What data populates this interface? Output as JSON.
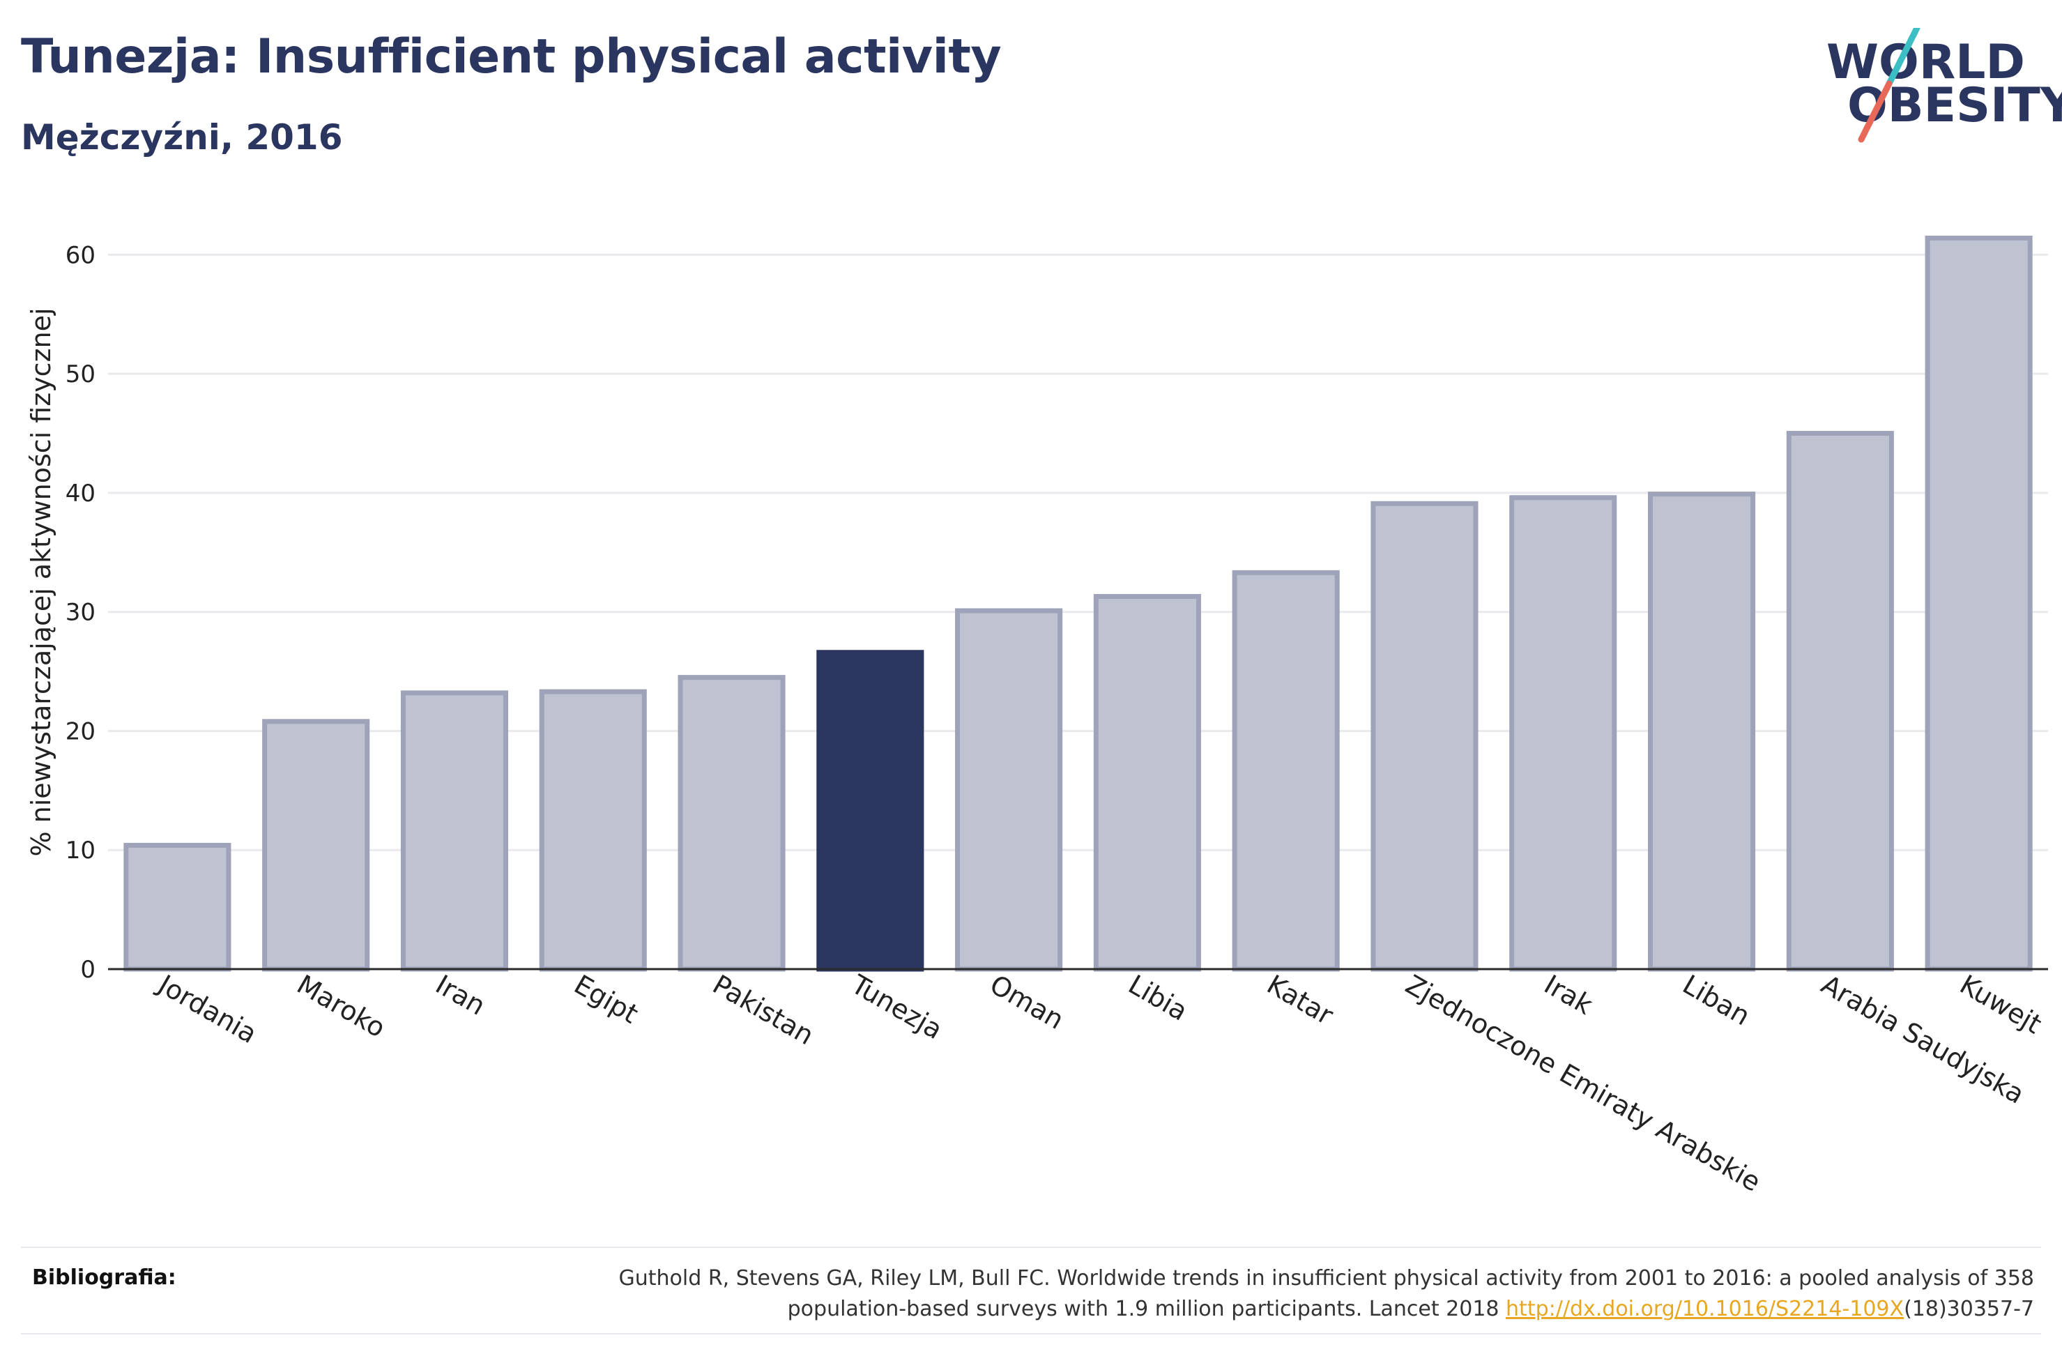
{
  "header": {
    "title": "Tunezja: Insufficient physical activity",
    "subtitle": "Mężczyźni, 2016"
  },
  "logo": {
    "line1": "WORLD",
    "line2": "OBESITY",
    "slash_top_color": "#3bbfc4",
    "slash_bottom_color": "#e8685a"
  },
  "chart_data": {
    "type": "bar",
    "categories": [
      "Jordania",
      "Maroko",
      "Iran",
      "Egipt",
      "Pakistan",
      "Tunezja",
      "Oman",
      "Libia",
      "Katar",
      "Zjednoczone Emiraty Arabskie",
      "Irak",
      "Liban",
      "Arabia Saudyjska",
      "Kuwejt"
    ],
    "values": [
      10.4,
      20.8,
      23.2,
      23.3,
      24.5,
      26.6,
      30.1,
      31.3,
      33.3,
      39.1,
      39.6,
      39.9,
      45.0,
      61.4
    ],
    "highlight": "Tunezja",
    "ylabel": "% niewystarczającej aktywności fizycznej",
    "xlabel": "",
    "ylim": [
      0,
      65
    ],
    "yticks": [
      0,
      10,
      20,
      30,
      40,
      50,
      60
    ],
    "grid": true,
    "colors": {
      "bar": "#bfc2d0",
      "bar_border": "#9ea3b9",
      "highlight": "#2b3660",
      "grid": "#e9e9ee"
    }
  },
  "bibliography": {
    "label": "Bibliografia:",
    "text_line1": "Guthold R, Stevens GA, Riley LM, Bull FC. Worldwide trends in insufficient physical activity from 2001 to 2016: a pooled analysis of 358",
    "text_line2_prefix": "population-based surveys with 1.9 million participants. Lancet 2018 ",
    "link": "http://dx.doi.org/10.1016/S2214-109X",
    "text_line2_suffix": "(18)30357-7"
  }
}
